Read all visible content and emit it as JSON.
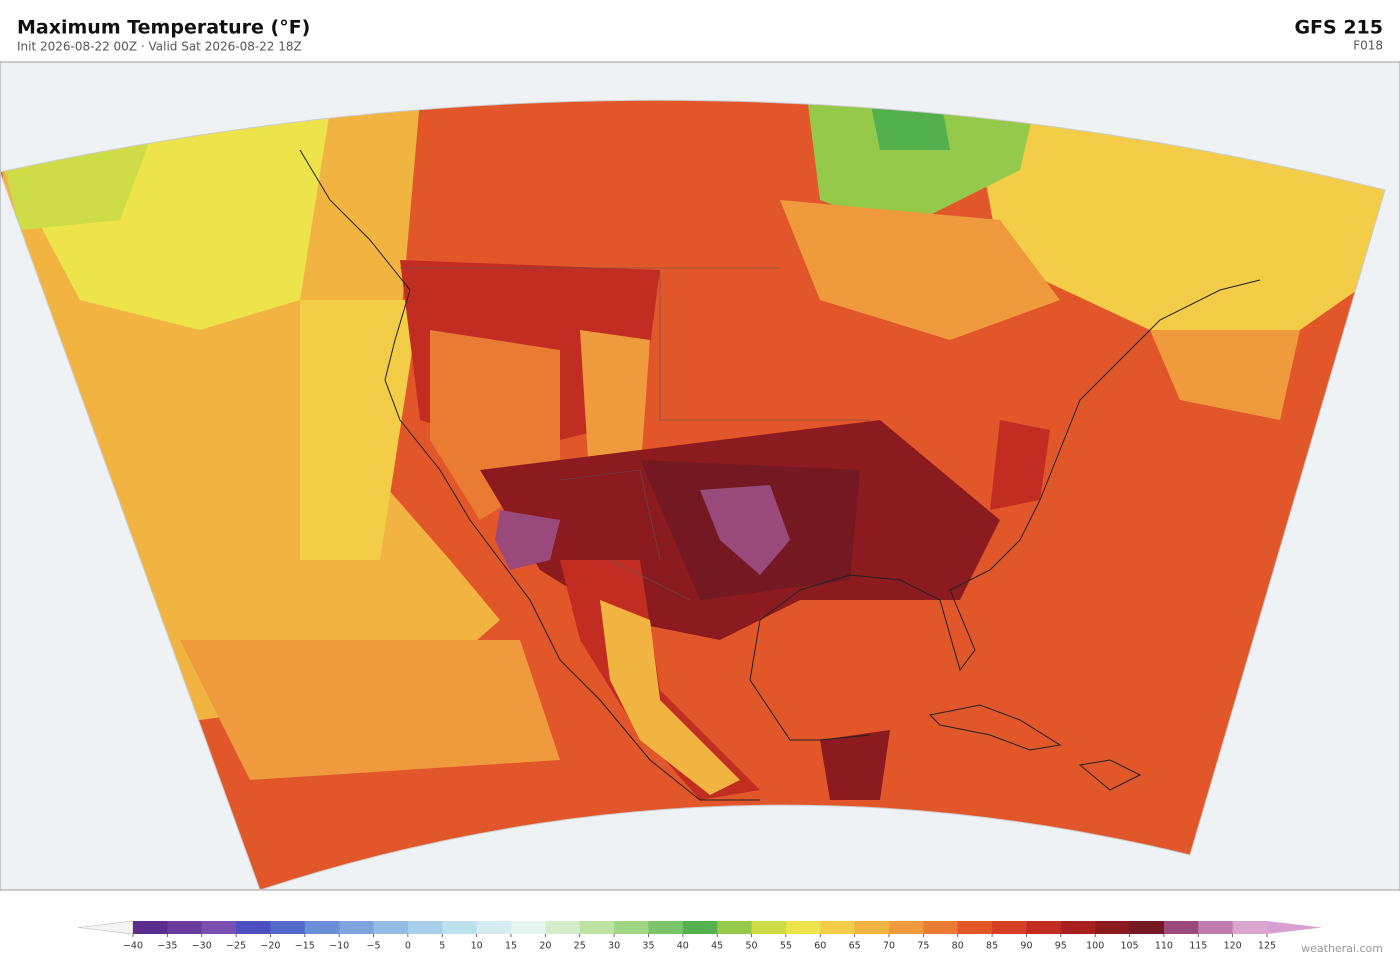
{
  "header": {
    "title": "Maximum Temperature  (°F)",
    "subtitle": "Init 2026-08-22 00Z   ·   Valid Sat 2026-08-22 18Z",
    "model": "GFS  215",
    "forecast_hour": "F018"
  },
  "colorbar": {
    "ticks": [
      {
        "value": -40,
        "label": "−40"
      },
      {
        "value": -35,
        "label": "−35"
      },
      {
        "value": -30,
        "label": "−30"
      },
      {
        "value": -25,
        "label": "−25"
      },
      {
        "value": -20,
        "label": "−20"
      },
      {
        "value": -15,
        "label": "−15"
      },
      {
        "value": -10,
        "label": "−10"
      },
      {
        "value": -5,
        "label": "−5"
      },
      0,
      5,
      10,
      15,
      20,
      25,
      30,
      35,
      40,
      45,
      50,
      55,
      60,
      65,
      70,
      75,
      80,
      85,
      90,
      95,
      100,
      105,
      110,
      115,
      120,
      125
    ],
    "colors": [
      "#5b2d8e",
      "#6a3a9c",
      "#7a4fb0",
      "#4b4fbf",
      "#5568cc",
      "#6a8fd6",
      "#7ea3dd",
      "#93bde4",
      "#a8d0ea",
      "#bfe0ef",
      "#d4ecf2",
      "#e6f5ef",
      "#d5eccb",
      "#bde3a3",
      "#a0d683",
      "#7cc469",
      "#52b04d",
      "#94c94a",
      "#cddc47",
      "#ece44a",
      "#f3cc48",
      "#f2b441",
      "#ef9a3c",
      "#e97b33",
      "#e2572a",
      "#d63f26",
      "#c22d22",
      "#a81f1f",
      "#8c1b1f",
      "#741821",
      "#9a4a7a",
      "#c07bb0",
      "#dba6cc"
    ],
    "under_color": "#f4f4f6",
    "over_color": "#d8a0d0"
  },
  "footer": {
    "credit": "weatherai.com"
  }
}
